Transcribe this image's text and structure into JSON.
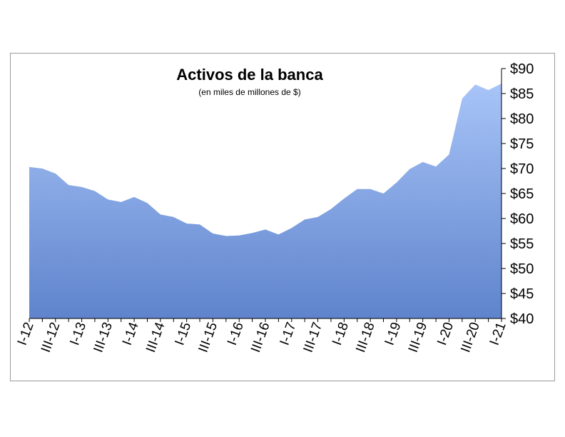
{
  "chart_data": {
    "type": "area",
    "title": "Activos de la banca",
    "subtitle": "(en miles de millones de $)",
    "ylim": [
      40,
      90
    ],
    "y_ticks": [
      "$40",
      "$45",
      "$50",
      "$55",
      "$60",
      "$65",
      "$70",
      "$75",
      "$80",
      "$85",
      "$90"
    ],
    "y_axis_position": "right",
    "grid": false,
    "legend": "none",
    "x_tick_labels": [
      "I-12",
      "III-12",
      "I-13",
      "III-13",
      "I-14",
      "III-14",
      "I-15",
      "III-15",
      "I-16",
      "III-16",
      "I-17",
      "III-17",
      "I-18",
      "III-18",
      "I-19",
      "III-19",
      "I-20",
      "III-20",
      "I-21"
    ],
    "x": [
      "I-12",
      "II-12",
      "III-12",
      "IV-12",
      "I-13",
      "II-13",
      "III-13",
      "IV-13",
      "I-14",
      "II-14",
      "III-14",
      "IV-14",
      "I-15",
      "II-15",
      "III-15",
      "IV-15",
      "I-16",
      "II-16",
      "III-16",
      "IV-16",
      "I-17",
      "II-17",
      "III-17",
      "IV-17",
      "I-18",
      "II-18",
      "III-18",
      "IV-18",
      "I-19",
      "II-19",
      "III-19",
      "IV-19",
      "I-20",
      "II-20",
      "III-20",
      "IV-20",
      "I-21"
    ],
    "values": [
      70.3,
      70.0,
      69.0,
      66.7,
      66.3,
      65.5,
      63.8,
      63.3,
      64.3,
      63.1,
      60.8,
      60.3,
      59.0,
      58.8,
      57.0,
      56.5,
      56.6,
      57.1,
      57.8,
      56.8,
      58.1,
      59.8,
      60.3,
      61.9,
      64.0,
      65.9,
      65.9,
      65.0,
      67.2,
      69.9,
      71.3,
      70.4,
      72.8,
      84.0,
      86.8,
      85.7,
      87.0
    ],
    "colors": {
      "fill_top": "#a8c4f8",
      "fill_bottom": "#5f84cc",
      "axis": "#000000",
      "frame": "#9a9a9a"
    }
  }
}
